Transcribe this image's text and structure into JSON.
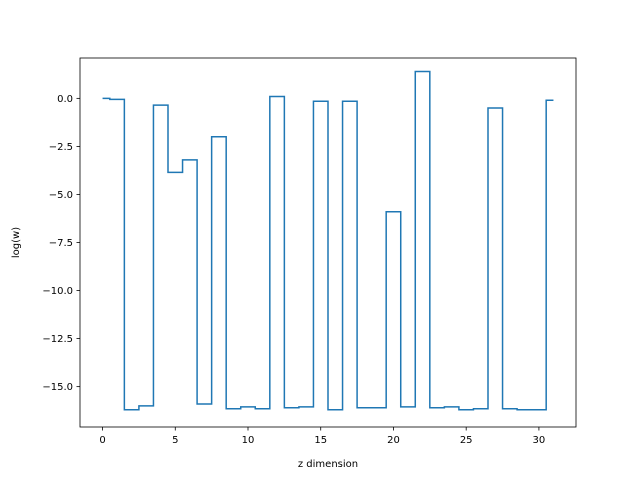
{
  "chart_data": {
    "type": "line",
    "drawstyle": "steps-mid",
    "title": "",
    "xlabel": "z dimension",
    "ylabel": "log(w)",
    "xlim": [
      -1.55,
      32.55
    ],
    "ylim": [
      -17.1,
      2.1
    ],
    "xticks": [
      0,
      5,
      10,
      15,
      20,
      25,
      30
    ],
    "yticks": [
      0.0,
      -2.5,
      -5.0,
      -7.5,
      -10.0,
      -12.5,
      -15.0
    ],
    "xtick_labels": [
      "0",
      "5",
      "10",
      "15",
      "20",
      "25",
      "30"
    ],
    "ytick_labels": [
      "0.0",
      "−2.5",
      "−5.0",
      "−7.5",
      "−10.0",
      "−12.5",
      "−15.0"
    ],
    "grid": false,
    "line_color": "#1f77b4",
    "series": [
      {
        "x": [
          0,
          1,
          2,
          3,
          4,
          5,
          6,
          7,
          8,
          9,
          10,
          11,
          12,
          13,
          14,
          15,
          16,
          17,
          18,
          19,
          20,
          21,
          22,
          23,
          24,
          25,
          26,
          27,
          28,
          29,
          30,
          31
        ],
        "values": [
          0.0,
          -0.05,
          -16.2,
          -16.0,
          -0.35,
          -3.85,
          -3.2,
          -15.9,
          -2.0,
          -16.15,
          -16.05,
          -16.15,
          0.1,
          -16.1,
          -16.05,
          -0.15,
          -16.2,
          -0.15,
          -16.1,
          -16.1,
          -5.9,
          -16.05,
          1.4,
          -16.1,
          -16.05,
          -16.2,
          -16.15,
          -0.5,
          -16.15,
          -16.2,
          -16.2,
          -0.1
        ]
      }
    ]
  }
}
